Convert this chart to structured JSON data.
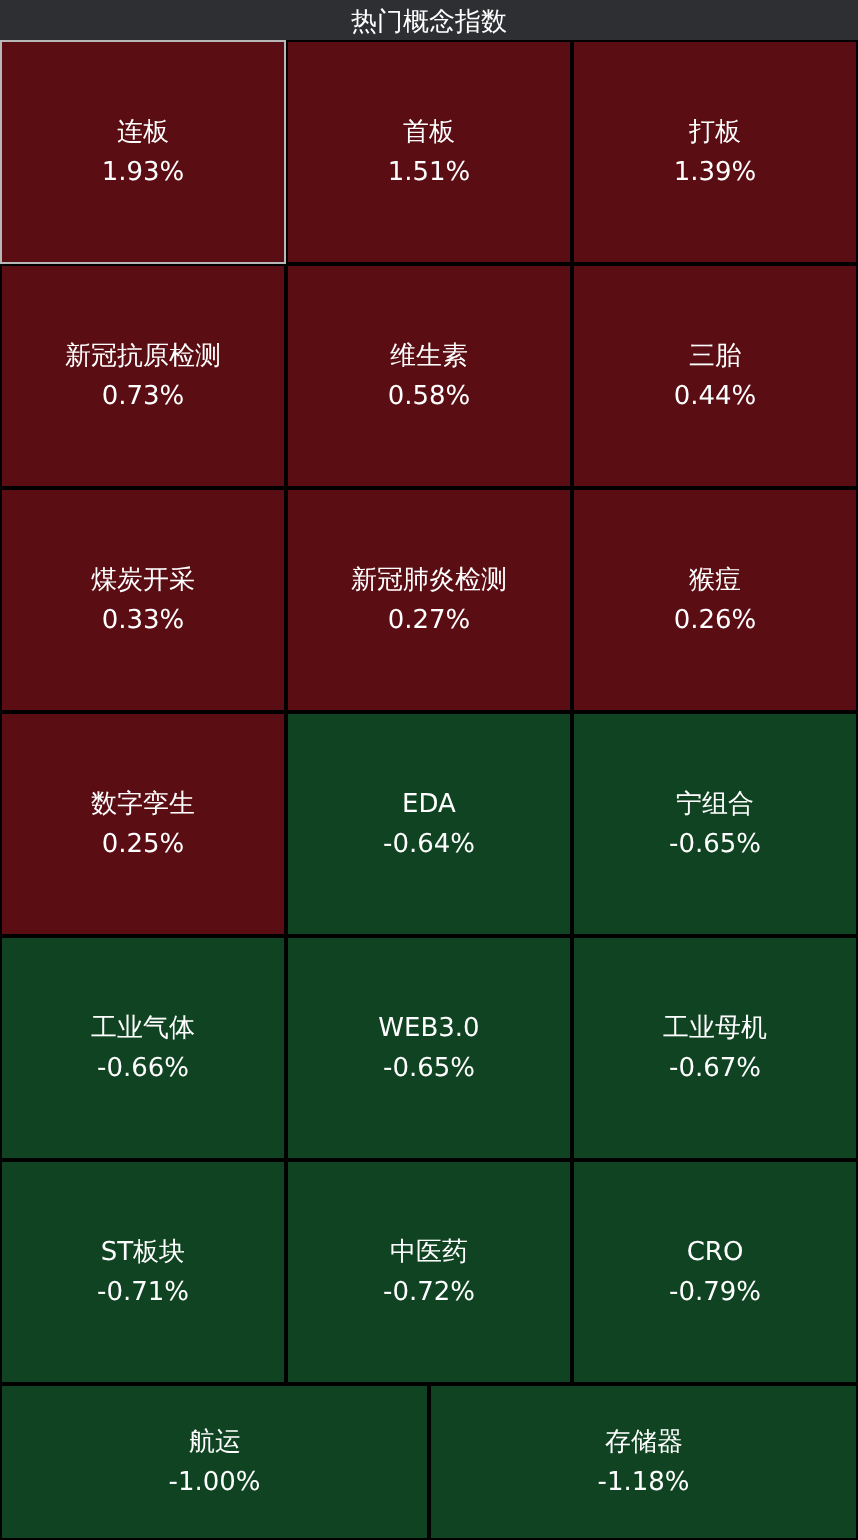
{
  "chart_data": {
    "type": "other",
    "title": "热门概念指数",
    "categories": [
      "连板",
      "首板",
      "打板",
      "新冠抗原检测",
      "维生素",
      "三胎",
      "煤炭开采",
      "新冠肺炎检测",
      "猴痘",
      "数字孪生",
      "EDA",
      "宁组合",
      "工业气体",
      "WEB3.0",
      "工业母机",
      "ST板块",
      "中医药",
      "CRO",
      "航运",
      "存储器"
    ],
    "values": [
      1.93,
      1.51,
      1.39,
      0.73,
      0.58,
      0.44,
      0.33,
      0.27,
      0.26,
      0.25,
      -0.64,
      -0.65,
      -0.66,
      -0.65,
      -0.67,
      -0.71,
      -0.72,
      -0.79,
      -1.0,
      -1.18
    ],
    "value_labels": [
      "1.93%",
      "1.51%",
      "1.39%",
      "0.73%",
      "0.58%",
      "0.44%",
      "0.33%",
      "0.27%",
      "0.26%",
      "0.25%",
      "-0.64%",
      "-0.65%",
      "-0.66%",
      "-0.65%",
      "-0.67%",
      "-0.71%",
      "-0.72%",
      "-0.79%",
      "-1.00%",
      "-1.18%"
    ],
    "colors": [
      "#5a0e14",
      "#5a0e14",
      "#5a0e14",
      "#5a0e14",
      "#5a0e14",
      "#5a0e14",
      "#5a0e14",
      "#5a0e14",
      "#5a0e14",
      "#5a0e14",
      "#0f4322",
      "#0f4322",
      "#0f4322",
      "#0f4322",
      "#0f4322",
      "#0f4322",
      "#0f4322",
      "#0f4322",
      "#0f4322",
      "#0f4322"
    ]
  }
}
